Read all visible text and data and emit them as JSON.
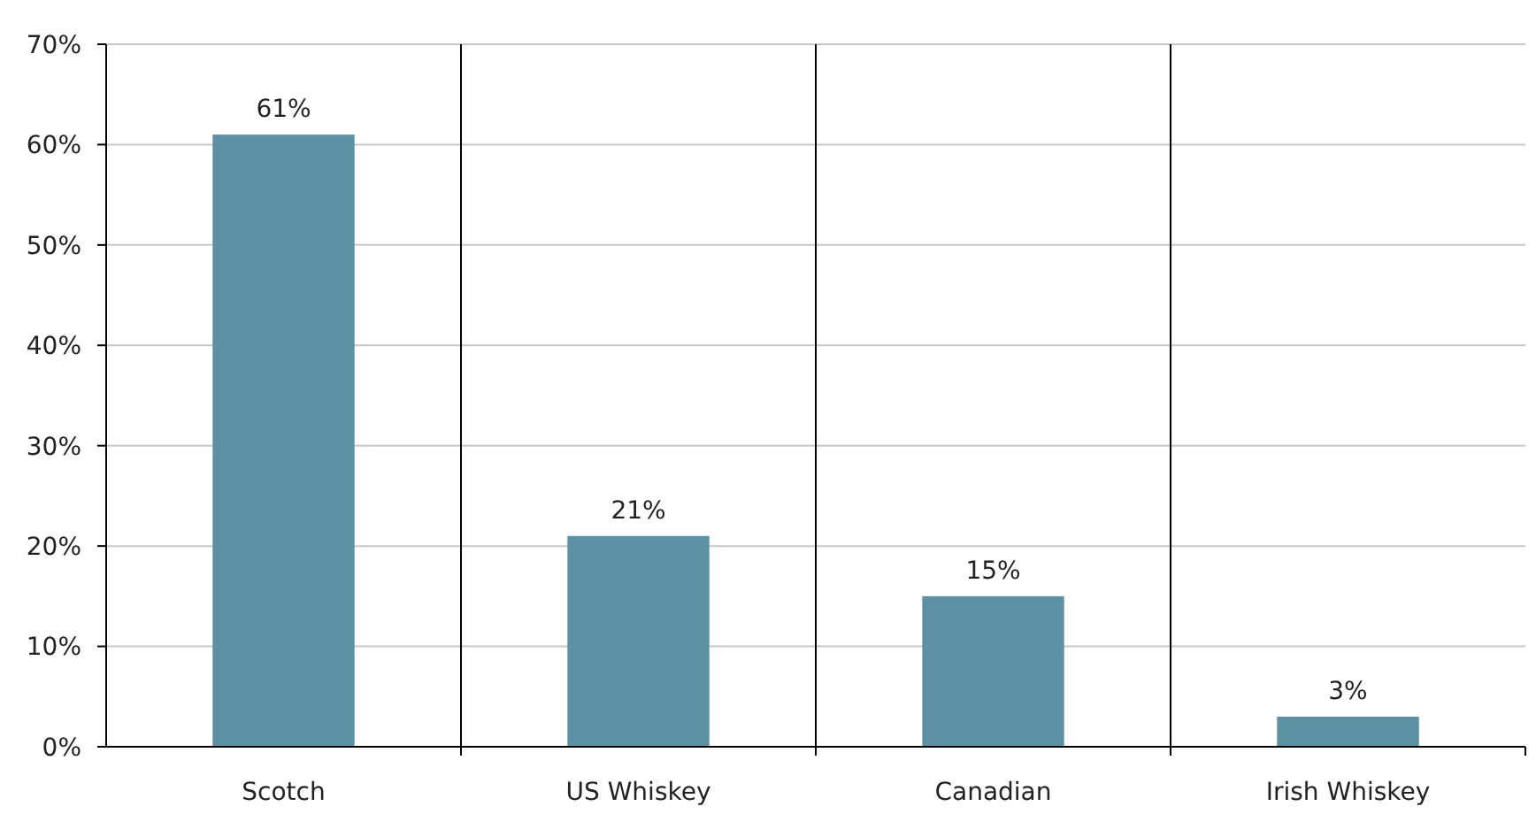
{
  "chart_data": {
    "type": "bar",
    "categories": [
      "Scotch",
      "US Whiskey",
      "Canadian",
      "Irish Whiskey"
    ],
    "values": [
      61,
      21,
      15,
      3
    ],
    "color": "#5b91a3",
    "value_labels": [
      "61%",
      "21%",
      "15%",
      "3%"
    ],
    "ylim": [
      0,
      70
    ],
    "yticks": [
      {
        "value": 0,
        "label": "0%"
      },
      {
        "value": 10,
        "label": "10%"
      },
      {
        "value": 20,
        "label": "20%"
      },
      {
        "value": 30,
        "label": "30%"
      },
      {
        "value": 40,
        "label": "40%"
      },
      {
        "value": 50,
        "label": "50%"
      },
      {
        "value": 60,
        "label": "60%"
      },
      {
        "value": 70,
        "label": "70%"
      }
    ],
    "grid": true
  }
}
